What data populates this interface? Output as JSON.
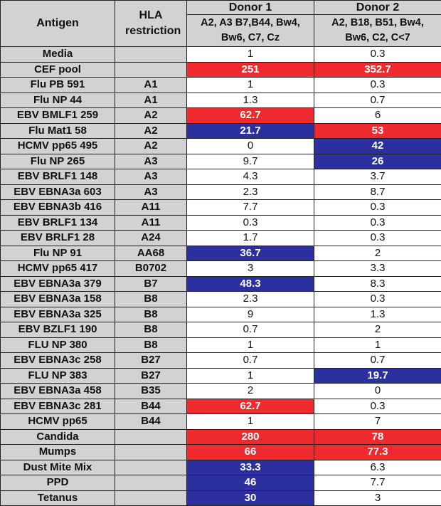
{
  "header": {
    "antigen": "Antigen",
    "hla_restriction": "HLA restriction",
    "donor1": {
      "name": "Donor 1",
      "hla": "A2, A3 B7,B44, Bw4, Bw6, C7, Cz"
    },
    "donor2": {
      "name": "Donor 2",
      "hla": "A2, B18, B51, Bw4, Bw6, C2, C<7"
    }
  },
  "colors": {
    "high": "#ee2a2e",
    "moderate": "#2c2f9e",
    "label_bg": "#d2d2d2"
  },
  "rows": [
    {
      "antigen": "Media",
      "hla": "",
      "d1": "1",
      "d1_level": "none",
      "d2": "0.3",
      "d2_level": "none"
    },
    {
      "antigen": "CEF pool",
      "hla": "",
      "d1": "251",
      "d1_level": "red",
      "d2": "352.7",
      "d2_level": "red"
    },
    {
      "antigen": "Flu PB 591",
      "hla": "A1",
      "d1": "1",
      "d1_level": "none",
      "d2": "0.3",
      "d2_level": "none"
    },
    {
      "antigen": "Flu NP 44",
      "hla": "A1",
      "d1": "1.3",
      "d1_level": "none",
      "d2": "0.7",
      "d2_level": "none"
    },
    {
      "antigen": "EBV BMLF1 259",
      "hla": "A2",
      "d1": "62.7",
      "d1_level": "red",
      "d2": "6",
      "d2_level": "none"
    },
    {
      "antigen": "Flu Mat1 58",
      "hla": "A2",
      "d1": "21.7",
      "d1_level": "blue",
      "d2": "53",
      "d2_level": "red"
    },
    {
      "antigen": "HCMV pp65 495",
      "hla": "A2",
      "d1": "0",
      "d1_level": "none",
      "d2": "42",
      "d2_level": "blue"
    },
    {
      "antigen": "Flu NP 265",
      "hla": "A3",
      "d1": "9.7",
      "d1_level": "none",
      "d2": "26",
      "d2_level": "blue"
    },
    {
      "antigen": "EBV BRLF1 148",
      "hla": "A3",
      "d1": "4.3",
      "d1_level": "none",
      "d2": "3.7",
      "d2_level": "none"
    },
    {
      "antigen": "EBV EBNA3a 603",
      "hla": "A3",
      "d1": "2.3",
      "d1_level": "none",
      "d2": "8.7",
      "d2_level": "none"
    },
    {
      "antigen": "EBV EBNA3b 416",
      "hla": "A11",
      "d1": "7.7",
      "d1_level": "none",
      "d2": "0.3",
      "d2_level": "none"
    },
    {
      "antigen": "EBV BRLF1 134",
      "hla": "A11",
      "d1": "0.3",
      "d1_level": "none",
      "d2": "0.3",
      "d2_level": "none"
    },
    {
      "antigen": "EBV BRLF1 28",
      "hla": "A24",
      "d1": "1.7",
      "d1_level": "none",
      "d2": "0.3",
      "d2_level": "none"
    },
    {
      "antigen": "Flu NP 91",
      "hla": "AA68",
      "d1": "36.7",
      "d1_level": "blue",
      "d2": "2",
      "d2_level": "none"
    },
    {
      "antigen": "HCMV pp65 417",
      "hla": "B0702",
      "d1": "3",
      "d1_level": "none",
      "d2": "3.3",
      "d2_level": "none"
    },
    {
      "antigen": "EBV EBNA3a 379",
      "hla": "B7",
      "d1": "48.3",
      "d1_level": "blue",
      "d2": "8.3",
      "d2_level": "none"
    },
    {
      "antigen": "EBV EBNA3a 158",
      "hla": "B8",
      "d1": "2.3",
      "d1_level": "none",
      "d2": "0.3",
      "d2_level": "none"
    },
    {
      "antigen": "EBV EBNA3a 325",
      "hla": "B8",
      "d1": "9",
      "d1_level": "none",
      "d2": "1.3",
      "d2_level": "none"
    },
    {
      "antigen": "EBV BZLF1 190",
      "hla": "B8",
      "d1": "0.7",
      "d1_level": "none",
      "d2": "2",
      "d2_level": "none"
    },
    {
      "antigen": "FLU NP 380",
      "hla": "B8",
      "d1": "1",
      "d1_level": "none",
      "d2": "1",
      "d2_level": "none"
    },
    {
      "antigen": "EBV EBNA3c 258",
      "hla": "B27",
      "d1": "0.7",
      "d1_level": "none",
      "d2": "0.7",
      "d2_level": "none"
    },
    {
      "antigen": "FLU NP 383",
      "hla": "B27",
      "d1": "1",
      "d1_level": "none",
      "d2": "19.7",
      "d2_level": "blue"
    },
    {
      "antigen": "EBV EBNA3a 458",
      "hla": "B35",
      "d1": "2",
      "d1_level": "none",
      "d2": "0",
      "d2_level": "none"
    },
    {
      "antigen": "EBV EBNA3c 281",
      "hla": "B44",
      "d1": "62.7",
      "d1_level": "red",
      "d2": "0.3",
      "d2_level": "none"
    },
    {
      "antigen": "HCMV pp65",
      "hla": "B44",
      "d1": "1",
      "d1_level": "none",
      "d2": "7",
      "d2_level": "none"
    },
    {
      "antigen": "Candida",
      "hla": "",
      "d1": "280",
      "d1_level": "red",
      "d2": "78",
      "d2_level": "red"
    },
    {
      "antigen": "Mumps",
      "hla": "",
      "d1": "66",
      "d1_level": "red",
      "d2": "77.3",
      "d2_level": "red"
    },
    {
      "antigen": "Dust Mite Mix",
      "hla": "",
      "d1": "33.3",
      "d1_level": "blue",
      "d2": "6.3",
      "d2_level": "none"
    },
    {
      "antigen": "PPD",
      "hla": "",
      "d1": "46",
      "d1_level": "blue",
      "d2": "7.7",
      "d2_level": "none"
    },
    {
      "antigen": "Tetanus",
      "hla": "",
      "d1": "30",
      "d1_level": "blue",
      "d2": "3",
      "d2_level": "none"
    }
  ]
}
